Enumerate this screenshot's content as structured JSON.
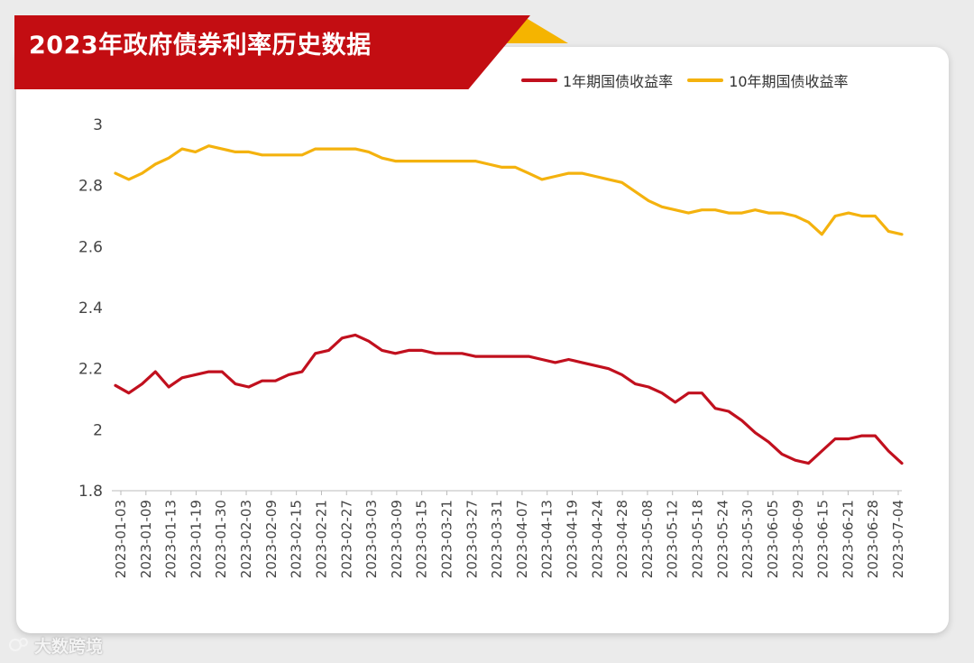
{
  "title": "2023年政府债券利率历史数据",
  "watermark": "大数跨境",
  "colors": {
    "series1": "#c1101e",
    "series2": "#f4b20e",
    "banner": "#c30d12",
    "accent": "#f5b400"
  },
  "chart_data": {
    "type": "line",
    "title": "2023年政府债券利率历史数据",
    "xlabel": "",
    "ylabel": "",
    "ylim": [
      1.8,
      3.0
    ],
    "yticks": [
      1.8,
      2,
      2.2,
      2.4,
      2.6,
      2.8,
      3
    ],
    "ytick_labels": [
      "1.8",
      "2",
      "2.2",
      "2.4",
      "2.6",
      "2.8",
      "3"
    ],
    "grid": false,
    "legend": "top-right",
    "x_tick_labels": [
      "2023-01-03",
      "2023-01-09",
      "2023-01-13",
      "2023-01-19",
      "2023-01-30",
      "2023-02-03",
      "2023-02-09",
      "2023-02-15",
      "2023-02-21",
      "2023-02-27",
      "2023-03-03",
      "2023-03-09",
      "2023-03-15",
      "2023-03-21",
      "2023-03-27",
      "2023-03-31",
      "2023-04-07",
      "2023-04-13",
      "2023-04-19",
      "2023-04-24",
      "2023-04-28",
      "2023-05-08",
      "2023-05-12",
      "2023-05-18",
      "2023-05-24",
      "2023-05-30",
      "2023-06-05",
      "2023-06-09",
      "2023-06-15",
      "2023-06-21",
      "2023-06-28",
      "2023-07-04"
    ],
    "series": [
      {
        "name": "1年期国债收益率",
        "values": [
          2.145,
          2.12,
          2.15,
          2.19,
          2.14,
          2.17,
          2.18,
          2.19,
          2.19,
          2.15,
          2.14,
          2.16,
          2.16,
          2.18,
          2.19,
          2.25,
          2.26,
          2.3,
          2.31,
          2.29,
          2.26,
          2.25,
          2.26,
          2.26,
          2.25,
          2.25,
          2.25,
          2.24,
          2.24,
          2.24,
          2.24,
          2.24,
          2.23,
          2.22,
          2.23,
          2.22,
          2.21,
          2.2,
          2.18,
          2.15,
          2.14,
          2.12,
          2.09,
          2.12,
          2.12,
          2.07,
          2.06,
          2.03,
          1.99,
          1.96,
          1.92,
          1.9,
          1.89,
          1.93,
          1.97,
          1.97,
          1.98,
          1.98,
          1.93,
          1.89
        ]
      },
      {
        "name": "10年期国债收益率",
        "values": [
          2.84,
          2.82,
          2.84,
          2.87,
          2.89,
          2.92,
          2.91,
          2.93,
          2.92,
          2.91,
          2.91,
          2.9,
          2.9,
          2.9,
          2.9,
          2.92,
          2.92,
          2.92,
          2.92,
          2.91,
          2.89,
          2.88,
          2.88,
          2.88,
          2.88,
          2.88,
          2.88,
          2.88,
          2.87,
          2.86,
          2.86,
          2.84,
          2.82,
          2.83,
          2.84,
          2.84,
          2.83,
          2.82,
          2.81,
          2.78,
          2.75,
          2.73,
          2.72,
          2.71,
          2.72,
          2.72,
          2.71,
          2.71,
          2.72,
          2.71,
          2.71,
          2.7,
          2.68,
          2.64,
          2.7,
          2.71,
          2.7,
          2.7,
          2.65,
          2.64
        ]
      }
    ]
  }
}
